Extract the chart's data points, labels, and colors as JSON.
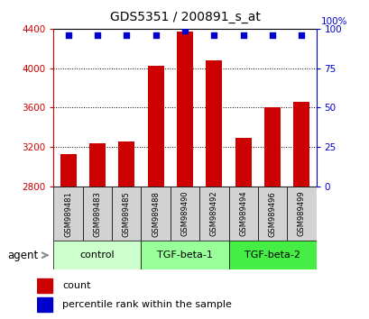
{
  "title": "GDS5351 / 200891_s_at",
  "samples": [
    "GSM989481",
    "GSM989483",
    "GSM989485",
    "GSM989488",
    "GSM989490",
    "GSM989492",
    "GSM989494",
    "GSM989496",
    "GSM989499"
  ],
  "counts": [
    3130,
    3240,
    3260,
    4020,
    4370,
    4080,
    3290,
    3600,
    3660
  ],
  "percentile_ranks": [
    96,
    96,
    96,
    96,
    99,
    96,
    96,
    96,
    96
  ],
  "groups": [
    {
      "label": "control",
      "start": 0,
      "end": 3,
      "color": "#ccffcc"
    },
    {
      "label": "TGF-beta-1",
      "start": 3,
      "end": 6,
      "color": "#99ff99"
    },
    {
      "label": "TGF-beta-2",
      "start": 6,
      "end": 9,
      "color": "#44ee44"
    }
  ],
  "ylim_left": [
    2800,
    4400
  ],
  "ylim_right": [
    0,
    100
  ],
  "yticks_left": [
    2800,
    3200,
    3600,
    4000,
    4400
  ],
  "yticks_right": [
    0,
    25,
    50,
    75,
    100
  ],
  "bar_color": "#cc0000",
  "dot_color": "#0000cc",
  "left_axis_color": "#cc0000",
  "right_axis_color": "#0000cc",
  "grid_color": "#000000",
  "sample_bg_color": "#d3d3d3",
  "agent_label": "agent",
  "legend_count_label": "count",
  "legend_pct_label": "percentile rank within the sample"
}
